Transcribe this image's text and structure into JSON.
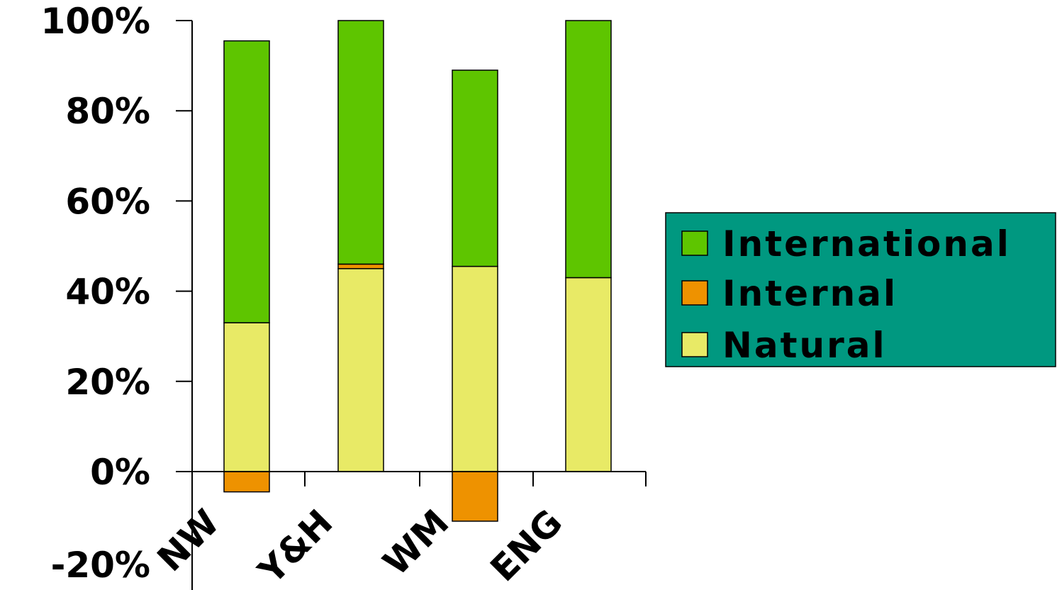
{
  "chart_data": {
    "type": "bar",
    "stacked": true,
    "categories": [
      "NW",
      "Y&H",
      "WM",
      "ENG"
    ],
    "series": [
      {
        "name": "Natural",
        "values": [
          33,
          45,
          45.5,
          43
        ],
        "color": "#e8ea66"
      },
      {
        "name": "Internal",
        "values": [
          -4.5,
          1,
          -11,
          0
        ],
        "color": "#ee9200"
      },
      {
        "name": "International",
        "values": [
          62.5,
          54,
          43.5,
          57
        ],
        "color": "#5ec500"
      }
    ],
    "ylim": [
      -20,
      100
    ],
    "yticks": [
      "100%",
      "80%",
      "60%",
      "40%",
      "20%",
      "0%",
      "-20%"
    ],
    "ytick_values": [
      100,
      80,
      60,
      40,
      20,
      0,
      -20
    ],
    "legend": {
      "position": "right",
      "background": "#009880",
      "entries": [
        "International",
        "Internal",
        "Natural"
      ]
    },
    "grid": false,
    "title": "",
    "xlabel": "",
    "ylabel": ""
  }
}
